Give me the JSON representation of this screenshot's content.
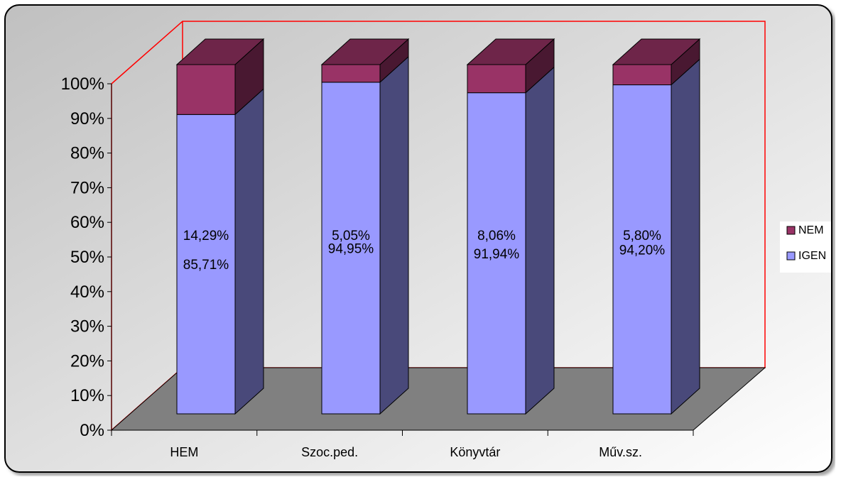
{
  "chart_data": {
    "type": "bar",
    "stacked": true,
    "three_d": true,
    "categories": [
      "HEM",
      "Szoc.ped.",
      "Könyvtár",
      "Műv.sz."
    ],
    "series": [
      {
        "name": "IGEN",
        "values": [
          85.71,
          94.95,
          91.94,
          94.2
        ],
        "labels": [
          "85,71%",
          "94,95%",
          "91,94%",
          "94,20%"
        ],
        "color": "#9999ff"
      },
      {
        "name": "NEM",
        "values": [
          14.29,
          5.05,
          8.06,
          5.8
        ],
        "labels": [
          "14,29%",
          "5,05%",
          "8,06%",
          "5,80%"
        ],
        "color": "#993366"
      }
    ],
    "y_ticks": [
      "0%",
      "10%",
      "20%",
      "30%",
      "40%",
      "50%",
      "60%",
      "70%",
      "80%",
      "90%",
      "100%"
    ],
    "ylim": [
      0,
      100
    ],
    "legend_position": "right",
    "colors": {
      "background_start": "#c0c0c0",
      "background_end": "#ffffff",
      "floor": "#808080",
      "wall_border": "#ff0000"
    }
  }
}
